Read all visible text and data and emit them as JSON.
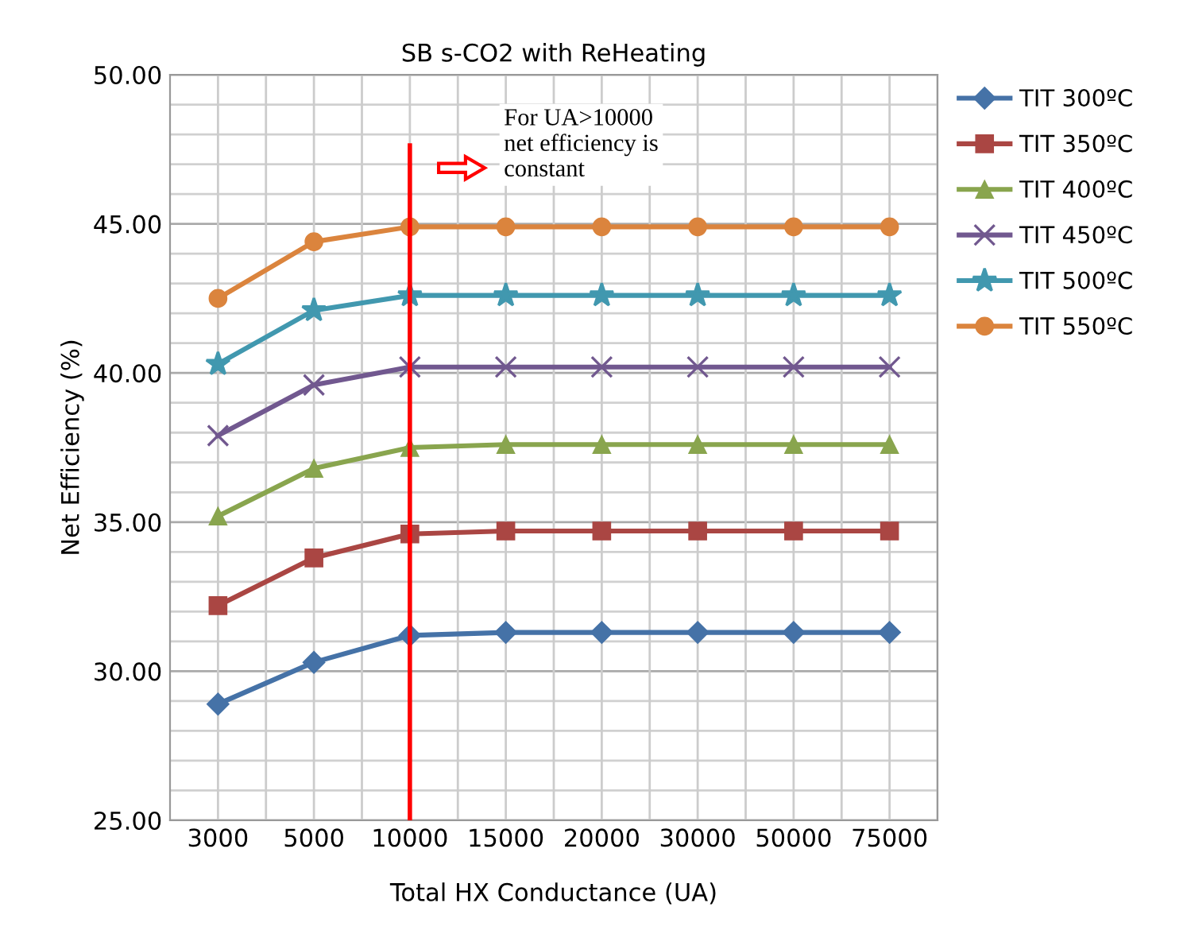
{
  "chart_data": {
    "type": "line",
    "title": "SB s-CO2 with ReHeating",
    "xlabel": "Total HX Conductance (UA)",
    "ylabel": "Net Efficiency (%)",
    "categories": [
      "3000",
      "5000",
      "10000",
      "15000",
      "20000",
      "30000",
      "50000",
      "75000"
    ],
    "series": [
      {
        "name": "TIT 300ºC",
        "color": "#4572a7",
        "marker": "diamond",
        "values": [
          28.9,
          30.3,
          31.2,
          31.3,
          31.3,
          31.3,
          31.3,
          31.3
        ]
      },
      {
        "name": "TIT 350ºC",
        "color": "#aa4643",
        "marker": "square",
        "values": [
          32.2,
          33.8,
          34.6,
          34.7,
          34.7,
          34.7,
          34.7,
          34.7
        ]
      },
      {
        "name": "TIT 400ºC",
        "color": "#89a54e",
        "marker": "triangle",
        "values": [
          35.2,
          36.8,
          37.5,
          37.6,
          37.6,
          37.6,
          37.6,
          37.6
        ]
      },
      {
        "name": "TIT 450ºC",
        "color": "#71588f",
        "marker": "cross",
        "values": [
          37.9,
          39.6,
          40.2,
          40.2,
          40.2,
          40.2,
          40.2,
          40.2
        ]
      },
      {
        "name": "TIT 500ºC",
        "color": "#4198af",
        "marker": "star",
        "values": [
          40.3,
          42.1,
          42.6,
          42.6,
          42.6,
          42.6,
          42.6,
          42.6
        ]
      },
      {
        "name": "TIT 550ºC",
        "color": "#db843d",
        "marker": "circle",
        "values": [
          42.5,
          44.4,
          44.9,
          44.9,
          44.9,
          44.9,
          44.9,
          44.9
        ]
      }
    ],
    "ylim": [
      25,
      50
    ],
    "yticks": [
      {
        "value": 25,
        "label": "25.00"
      },
      {
        "value": 26,
        "label": null
      },
      {
        "value": 27,
        "label": null
      },
      {
        "value": 28,
        "label": null
      },
      {
        "value": 29,
        "label": null
      },
      {
        "value": 30,
        "label": "30.00"
      },
      {
        "value": 31,
        "label": null
      },
      {
        "value": 32,
        "label": null
      },
      {
        "value": 33,
        "label": null
      },
      {
        "value": 34,
        "label": null
      },
      {
        "value": 35,
        "label": "35.00"
      },
      {
        "value": 36,
        "label": null
      },
      {
        "value": 37,
        "label": null
      },
      {
        "value": 38,
        "label": null
      },
      {
        "value": 39,
        "label": null
      },
      {
        "value": 40,
        "label": "40.00"
      },
      {
        "value": 41,
        "label": null
      },
      {
        "value": 42,
        "label": null
      },
      {
        "value": 43,
        "label": null
      },
      {
        "value": 44,
        "label": null
      },
      {
        "value": 45,
        "label": "45.00"
      },
      {
        "value": 46,
        "label": null
      },
      {
        "value": 47,
        "label": null
      },
      {
        "value": 48,
        "label": null
      },
      {
        "value": 49,
        "label": null
      },
      {
        "value": 50,
        "label": "50.00"
      }
    ],
    "ref_lines": [
      {
        "axis": "x",
        "value": "10000",
        "color": "#ff0000",
        "line_style": "solid"
      }
    ],
    "annotations": [
      "For UA>10000\nnet efficiency is\nconstant"
    ],
    "grid": true,
    "legend": "right",
    "line_style": "solid"
  }
}
